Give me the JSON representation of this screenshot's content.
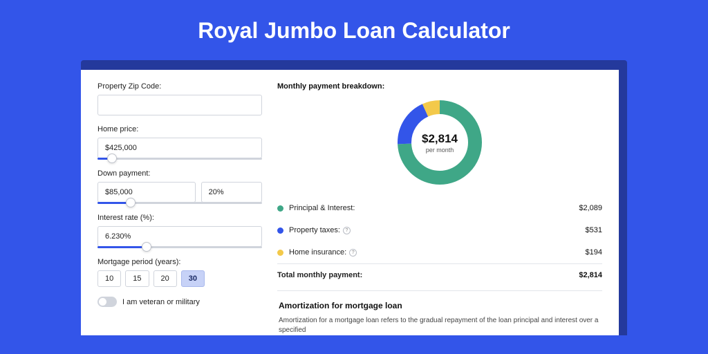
{
  "title": "Royal Jumbo Loan Calculator",
  "colors": {
    "page_bg": "#3355e9",
    "card_shadow": "#24399c",
    "card_bg": "#ffffff",
    "accent": "#3355e9",
    "principal": "#3fa787",
    "taxes": "#3355e9",
    "insurance": "#f3c94a",
    "border": "#d0d4dc"
  },
  "form": {
    "zip": {
      "label": "Property Zip Code:",
      "value": ""
    },
    "home_price": {
      "label": "Home price:",
      "value": "$425,000",
      "slider_pct": 9
    },
    "down_payment": {
      "label": "Down payment:",
      "amount": "$85,000",
      "percent": "20%",
      "slider_pct": 20
    },
    "interest_rate": {
      "label": "Interest rate (%):",
      "value": "6.230%",
      "slider_pct": 30
    },
    "period": {
      "label": "Mortgage period (years):",
      "options": [
        "10",
        "15",
        "20",
        "30"
      ],
      "selected": "30"
    },
    "veteran": {
      "label": "I am veteran or military",
      "on": false
    }
  },
  "breakdown": {
    "title": "Monthly payment breakdown:",
    "center_value": "$2,814",
    "center_sub": "per month",
    "donut": {
      "size": 122,
      "stroke": 20,
      "slices": [
        {
          "key": "principal",
          "value": 2089,
          "color": "#3fa787"
        },
        {
          "key": "taxes",
          "value": 531,
          "color": "#3355e9"
        },
        {
          "key": "insurance",
          "value": 194,
          "color": "#f3c94a"
        }
      ]
    },
    "rows": [
      {
        "label": "Principal & Interest:",
        "amount": "$2,089",
        "color": "#3fa787",
        "info": false
      },
      {
        "label": "Property taxes:",
        "amount": "$531",
        "color": "#3355e9",
        "info": true
      },
      {
        "label": "Home insurance:",
        "amount": "$194",
        "color": "#f3c94a",
        "info": true
      }
    ],
    "total": {
      "label": "Total monthly payment:",
      "amount": "$2,814"
    }
  },
  "amortization": {
    "title": "Amortization for mortgage loan",
    "body": "Amortization for a mortgage loan refers to the gradual repayment of the loan principal and interest over a specified"
  }
}
